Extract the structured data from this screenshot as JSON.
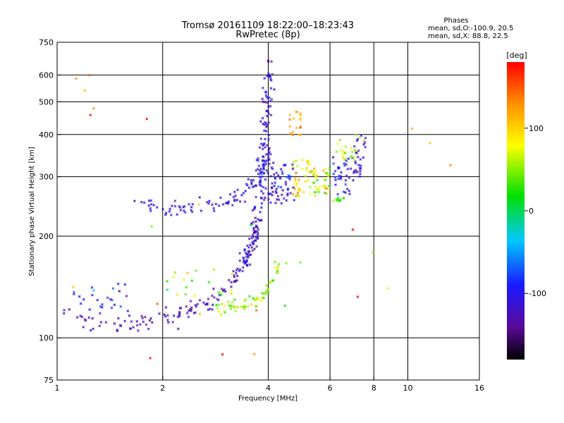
{
  "chart_data": {
    "type": "scatter",
    "title": "Tromsø 20161109 18:22:00–18:23:43",
    "subtitle": "RwPretec (8p)",
    "xlabel": "Frequency [MHz]",
    "ylabel": "Stationary phase Virtual Height [km]",
    "x_scale": "log",
    "y_scale": "log",
    "xlim": [
      1,
      16
    ],
    "ylim": [
      75,
      750
    ],
    "grid": true,
    "x_ticks": [
      {
        "value": 1,
        "label": "1"
      },
      {
        "value": 2,
        "label": "2"
      },
      {
        "value": 4,
        "label": "4"
      },
      {
        "value": 6,
        "label": "6"
      },
      {
        "value": 8,
        "label": "8"
      },
      {
        "value": 10,
        "label": "10"
      },
      {
        "value": 16,
        "label": "16"
      }
    ],
    "x_grid": [
      2,
      4,
      6,
      8,
      10
    ],
    "y_ticks": [
      {
        "value": 75,
        "label": "75"
      },
      {
        "value": 100,
        "label": "100"
      },
      {
        "value": 200,
        "label": "200"
      },
      {
        "value": 300,
        "label": "300"
      },
      {
        "value": 400,
        "label": "400"
      },
      {
        "value": 500,
        "label": "500"
      },
      {
        "value": 600,
        "label": "600"
      },
      {
        "value": 750,
        "label": "750"
      }
    ],
    "y_grid": [
      100,
      200,
      300,
      400,
      500,
      600
    ],
    "phase_info": {
      "heading": "Phases",
      "line_o": "mean, sd,O:-100.9, 20.5",
      "line_x": "mean, sd,X: 88.8, 22.5"
    },
    "colorbar": {
      "label": "[deg]",
      "range": [
        -180,
        180
      ],
      "ticks": [
        {
          "value": 100,
          "label": "100"
        },
        {
          "value": 0,
          "label": "0"
        },
        {
          "value": -100,
          "label": "-100"
        }
      ]
    },
    "traces": [
      {
        "kind": "curve",
        "phase": -125,
        "spread": 12,
        "noise": 0.03,
        "count": 210,
        "points": [
          [
            1.05,
            118
          ],
          [
            1.3,
            110
          ],
          [
            1.6,
            108
          ],
          [
            1.9,
            113
          ],
          [
            2.2,
            117
          ],
          [
            2.5,
            123
          ],
          [
            2.8,
            130
          ],
          [
            3.1,
            142
          ],
          [
            3.35,
            158
          ],
          [
            3.55,
            185
          ],
          [
            3.68,
            205
          ],
          [
            3.8,
            260
          ],
          [
            3.88,
            330
          ],
          [
            3.95,
            430
          ],
          [
            4.0,
            560
          ],
          [
            4.02,
            640
          ]
        ]
      },
      {
        "kind": "curve",
        "phase": -100,
        "spread": 10,
        "noise": 0.03,
        "count": 90,
        "points": [
          [
            3.35,
            158
          ],
          [
            3.55,
            185
          ],
          [
            3.7,
            215
          ],
          [
            3.82,
            280
          ],
          [
            3.9,
            360
          ],
          [
            3.96,
            460
          ],
          [
            4.0,
            600
          ]
        ]
      },
      {
        "kind": "curve",
        "phase": -110,
        "spread": 10,
        "noise": 0.025,
        "count": 85,
        "points": [
          [
            1.7,
            250
          ],
          [
            2.0,
            238
          ],
          [
            2.3,
            242
          ],
          [
            2.7,
            252
          ],
          [
            3.0,
            252
          ],
          [
            3.2,
            258
          ],
          [
            3.45,
            275
          ],
          [
            3.7,
            300
          ],
          [
            3.9,
            330
          ]
        ]
      },
      {
        "kind": "curve",
        "phase": 50,
        "spread": 25,
        "noise": 0.025,
        "count": 70,
        "points": [
          [
            2.9,
            122
          ],
          [
            3.2,
            122
          ],
          [
            3.5,
            126
          ],
          [
            3.8,
            132
          ],
          [
            4.1,
            145
          ],
          [
            4.35,
            168
          ]
        ]
      },
      {
        "kind": "cluster",
        "phase": 95,
        "spread": 25,
        "count": 40,
        "x": [
          4.7,
          5.3
        ],
        "y": [
          262,
          340
        ]
      },
      {
        "kind": "cluster",
        "phase": 120,
        "spread": 20,
        "count": 18,
        "x": [
          4.6,
          4.95
        ],
        "y": [
          390,
          475
        ]
      },
      {
        "kind": "cluster",
        "phase": 70,
        "spread": 30,
        "count": 40,
        "x": [
          5.3,
          6.0
        ],
        "y": [
          262,
          318
        ]
      },
      {
        "kind": "cluster",
        "phase": -100,
        "spread": 18,
        "count": 60,
        "x": [
          4.0,
          4.75
        ],
        "y": [
          250,
          330
        ]
      },
      {
        "kind": "cluster",
        "phase": -100,
        "spread": 18,
        "count": 35,
        "x": [
          6.1,
          7.0
        ],
        "y": [
          265,
          345
        ]
      },
      {
        "kind": "cluster",
        "phase": -110,
        "spread": 15,
        "count": 28,
        "x": [
          7.0,
          7.6
        ],
        "y": [
          300,
          400
        ]
      },
      {
        "kind": "cluster",
        "phase": 55,
        "spread": 30,
        "count": 22,
        "x": [
          6.2,
          7.3
        ],
        "y": [
          330,
          400
        ]
      },
      {
        "kind": "cluster",
        "phase": 30,
        "spread": 25,
        "count": 10,
        "x": [
          6.1,
          6.6
        ],
        "y": [
          252,
          262
        ]
      },
      {
        "kind": "cluster",
        "phase": -100,
        "spread": 20,
        "count": 25,
        "x": [
          1.05,
          1.6
        ],
        "y": [
          120,
          145
        ]
      },
      {
        "kind": "cluster",
        "phase": 40,
        "spread": 40,
        "count": 20,
        "x": [
          2.0,
          3.2
        ],
        "y": [
          128,
          160
        ]
      },
      {
        "kind": "cluster",
        "phase": 120,
        "spread": 50,
        "count": 28,
        "x": [
          1.1,
          14.0
        ],
        "y": [
          80,
          600
        ]
      }
    ]
  }
}
